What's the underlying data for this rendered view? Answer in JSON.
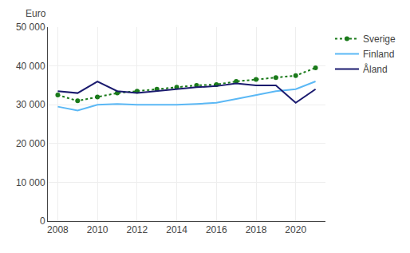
{
  "chart_data": {
    "type": "line",
    "ylabel": "Euro",
    "x": [
      2008,
      2009,
      2010,
      2011,
      2012,
      2013,
      2014,
      2015,
      2016,
      2017,
      2018,
      2019,
      2020,
      2021
    ],
    "series": [
      {
        "name": "Sverige",
        "color": "#1a7a1a",
        "line_style": "dotted",
        "marker": "circle",
        "values": [
          32500,
          31000,
          32000,
          33000,
          33500,
          34000,
          34500,
          35000,
          35200,
          36000,
          36500,
          37000,
          37500,
          39500
        ]
      },
      {
        "name": "Finland",
        "color": "#5bb8f5",
        "line_style": "solid",
        "values": [
          29500,
          28500,
          30000,
          30200,
          30000,
          30000,
          30000,
          30200,
          30500,
          31500,
          32500,
          33500,
          34000,
          36000
        ]
      },
      {
        "name": "Åland",
        "color": "#1a1a6e",
        "line_style": "solid",
        "values": [
          33500,
          33000,
          36000,
          33500,
          33000,
          33500,
          34000,
          34500,
          34800,
          35500,
          35000,
          35000,
          30500,
          34000
        ]
      }
    ],
    "xlim": [
      2007.5,
      2021.5
    ],
    "xticks": [
      2008,
      2010,
      2012,
      2014,
      2016,
      2018,
      2020
    ],
    "ylim": [
      0,
      50000
    ],
    "yticks": [
      0,
      {
        "value": 10000,
        "label": "10 000"
      },
      {
        "value": 20000,
        "label": "20 000"
      },
      {
        "value": 30000,
        "label": "30 000"
      },
      {
        "value": 40000,
        "label": "40 000"
      },
      {
        "value": 50000,
        "label": "50 000"
      }
    ],
    "grid": true,
    "legend": "right"
  }
}
